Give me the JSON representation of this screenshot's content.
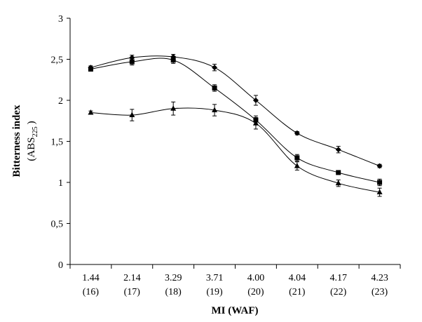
{
  "chart_data": {
    "type": "line",
    "xlabel": "MI (WAF)",
    "ylabel": "Bitterness index",
    "ylabel_unit": "(ABS",
    "ylabel_sub": "225",
    "ylabel_close": ")",
    "categories": [
      "1.44",
      "2.14",
      "3.29",
      "3.71",
      "4.00",
      "4.04",
      "4.17",
      "4.23"
    ],
    "categories_sub": [
      "(16)",
      "(17)",
      "(18)",
      "(19)",
      "(20)",
      "(21)",
      "(22)",
      "(23)"
    ],
    "y_ticks": [
      "0",
      "0,5",
      "1",
      "1,5",
      "2",
      "2,5",
      "3"
    ],
    "ylim": [
      0,
      3
    ],
    "grid": false,
    "series": [
      {
        "marker": "diamond",
        "values": [
          2.4,
          2.52,
          2.53,
          2.4,
          2.0,
          1.6,
          1.4,
          1.2
        ],
        "errors": [
          0.02,
          0.03,
          0.03,
          0.04,
          0.06,
          0.02,
          0.04,
          0.02
        ]
      },
      {
        "marker": "square",
        "values": [
          2.38,
          2.47,
          2.49,
          2.15,
          1.76,
          1.3,
          1.12,
          1.0
        ],
        "errors": [
          0.02,
          0.04,
          0.04,
          0.04,
          0.05,
          0.04,
          0.02,
          0.04
        ]
      },
      {
        "marker": "triangle",
        "values": [
          1.85,
          1.82,
          1.9,
          1.88,
          1.72,
          1.2,
          0.99,
          0.88
        ],
        "errors": [
          0.02,
          0.07,
          0.08,
          0.07,
          0.07,
          0.05,
          0.04,
          0.05
        ]
      }
    ]
  }
}
